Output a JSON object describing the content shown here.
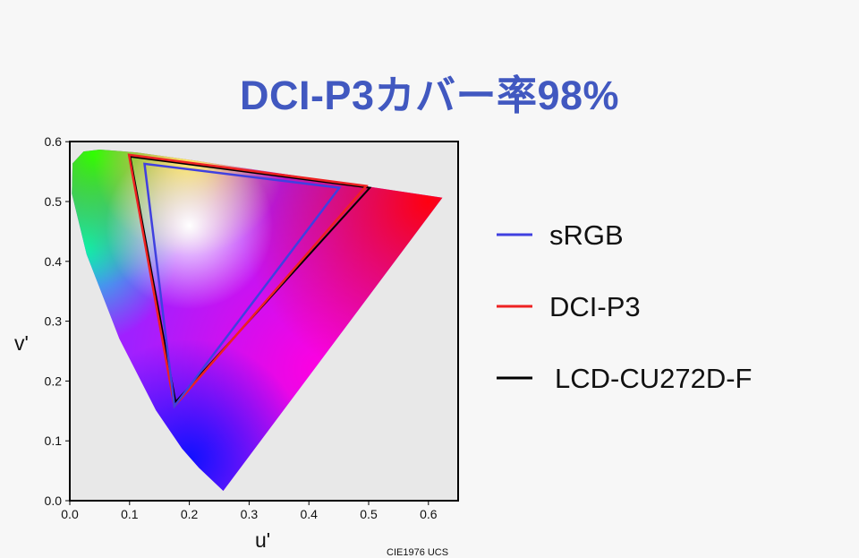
{
  "title": "DCI-P3カバー率98%",
  "chart_data": {
    "type": "scatter",
    "title": "DCI-P3カバー率98%",
    "xlabel": "u'",
    "ylabel": "v'",
    "note": "CIE1976 UCS",
    "xlim": [
      0,
      0.65
    ],
    "ylim": [
      0,
      0.6
    ],
    "xticks": [
      "0.0",
      "0.1",
      "0.2",
      "0.3",
      "0.4",
      "0.5",
      "0.6"
    ],
    "yticks": [
      "0.0",
      "0.1",
      "0.2",
      "0.3",
      "0.4",
      "0.5",
      "0.6"
    ],
    "grid": false,
    "legend_position": "right",
    "spectral_locus": [
      [
        0.2568,
        0.0165
      ],
      [
        0.216,
        0.055
      ],
      [
        0.1877,
        0.0871
      ],
      [
        0.1441,
        0.151
      ],
      [
        0.0828,
        0.2708
      ],
      [
        0.0282,
        0.4117
      ],
      [
        0.0035,
        0.513
      ],
      [
        0.0046,
        0.5638
      ],
      [
        0.0231,
        0.5837
      ],
      [
        0.0501,
        0.5868
      ],
      [
        0.1127,
        0.5821
      ],
      [
        0.2026,
        0.5694
      ],
      [
        0.4035,
        0.5393
      ],
      [
        0.6234,
        0.5065
      ]
    ],
    "series": [
      {
        "name": "sRGB",
        "color": "#4040e0",
        "points": [
          [
            0.451,
            0.523
          ],
          [
            0.125,
            0.563
          ],
          [
            0.175,
            0.158
          ]
        ]
      },
      {
        "name": "DCI-P3",
        "color": "#ee2222",
        "points": [
          [
            0.496,
            0.526
          ],
          [
            0.099,
            0.578
          ],
          [
            0.175,
            0.158
          ]
        ]
      },
      {
        "name": "LCD-CU272D-F",
        "color": "#000000",
        "points": [
          [
            0.502,
            0.523
          ],
          [
            0.101,
            0.575
          ],
          [
            0.177,
            0.165
          ]
        ]
      }
    ]
  }
}
